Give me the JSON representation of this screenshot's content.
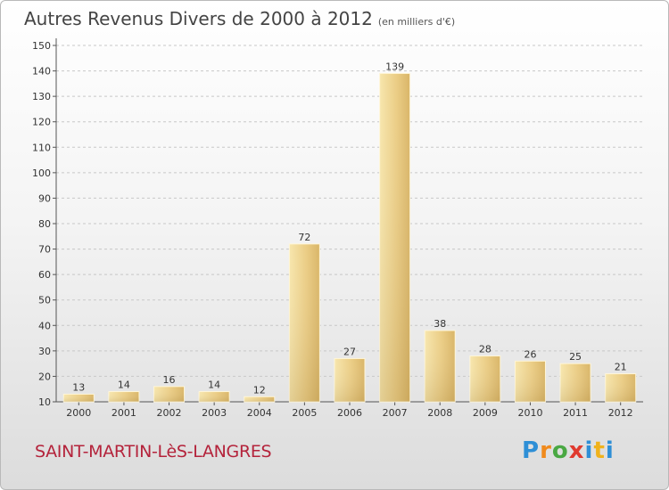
{
  "header": {
    "title": "Autres Revenus Divers de 2000 à 2012",
    "subtitle": "(en milliers d'€)"
  },
  "footer": {
    "location": "SAINT-MARTIN-LèS-LANGRES",
    "logo_letters": [
      "P",
      "r",
      "o",
      "x",
      "i",
      "t",
      "i"
    ],
    "logo_colors": [
      "#2e8fd6",
      "#f08a1c",
      "#4aa843",
      "#e03a2f",
      "#2e8fd6",
      "#f0b21c",
      "#2e8fd6"
    ]
  },
  "chart_data": {
    "type": "bar",
    "title": "Autres Revenus Divers de 2000 à 2012",
    "subtitle": "(en milliers d'€)",
    "categories": [
      "2000",
      "2001",
      "2002",
      "2003",
      "2004",
      "2005",
      "2006",
      "2007",
      "2008",
      "2009",
      "2010",
      "2011",
      "2012"
    ],
    "values": [
      13,
      14,
      16,
      14,
      12,
      72,
      27,
      139,
      38,
      28,
      26,
      25,
      21
    ],
    "xlabel": "",
    "ylabel": "",
    "ylim": [
      10,
      150
    ],
    "yticks": [
      10,
      20,
      30,
      40,
      50,
      60,
      70,
      80,
      90,
      100,
      110,
      120,
      130,
      140,
      150
    ],
    "grid": "horizontal dashed",
    "bar_color": "#e8c97e",
    "bar_color_light": "#f6e3a8",
    "bar_color_dark": "#c9a45a"
  }
}
